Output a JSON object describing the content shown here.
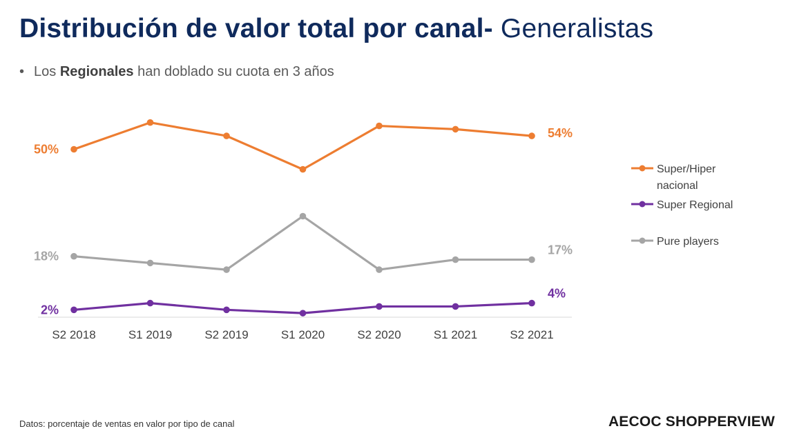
{
  "title": {
    "bold": "Distribución de valor total por canal-",
    "light": " Generalistas"
  },
  "bullet": {
    "prefix": "Los ",
    "highlight": "Regionales",
    "suffix": " han doblado su cuota en 3 años"
  },
  "footer_note": "Datos: porcentaje de ventas en valor por tipo de canal",
  "brand": "AECOC SHOPPERVIEW",
  "chart_data": {
    "type": "line",
    "categories": [
      "S2 2018",
      "S1 2019",
      "S2 2019",
      "S1 2020",
      "S2 2020",
      "S1 2021",
      "S2 2021"
    ],
    "series": [
      {
        "name": "Super/Hiper nacional",
        "color": "#ed7d31",
        "values": [
          50,
          58,
          54,
          44,
          57,
          56,
          54
        ],
        "start_label": "50%",
        "end_label": "54%"
      },
      {
        "name": "Super Regional",
        "color": "#7030a0",
        "values": [
          2,
          4,
          2,
          1,
          3,
          3,
          4
        ],
        "start_label": "2%",
        "end_label": "4%"
      },
      {
        "name": "Pure players",
        "color": "#a5a5a5",
        "values": [
          18,
          16,
          14,
          30,
          14,
          17,
          17
        ],
        "start_label": "18%",
        "end_label": "17%"
      }
    ],
    "ylim": [
      0,
      60
    ],
    "grid": false,
    "legend": "right"
  }
}
